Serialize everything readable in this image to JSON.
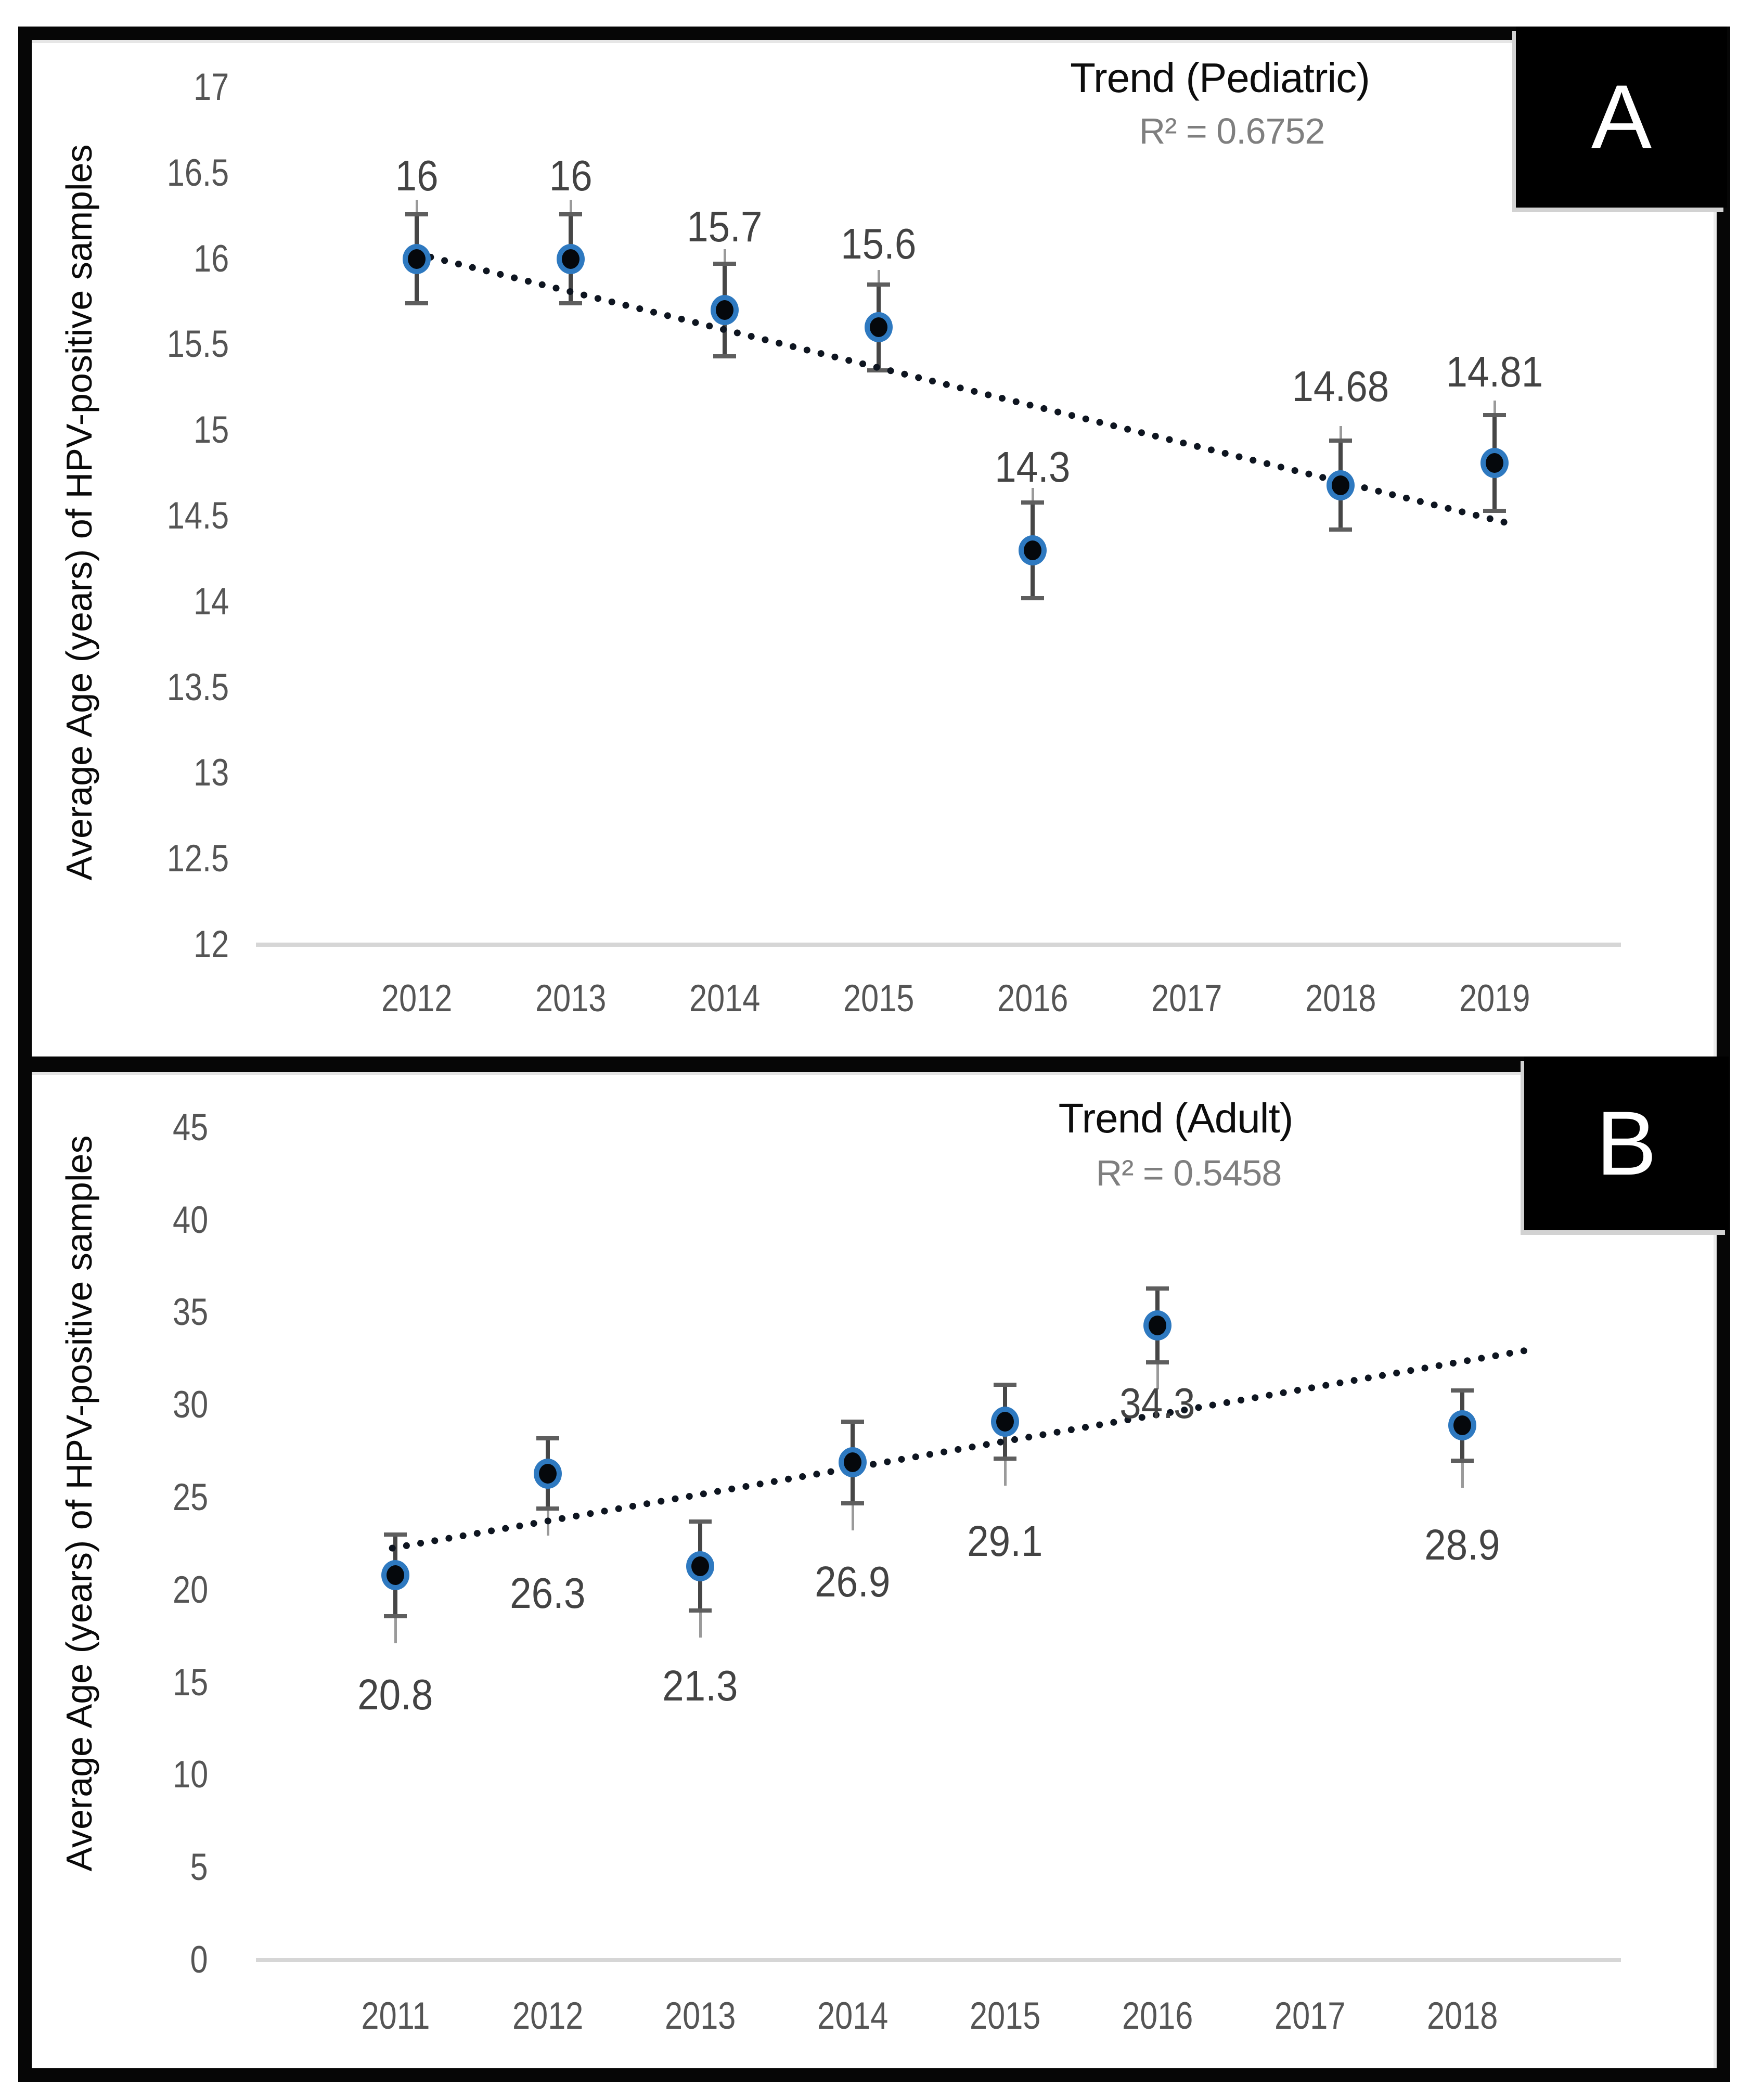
{
  "figure": {
    "panels": [
      {
        "id": "A",
        "panel_label": "A",
        "title": "Trend (Pediatric)",
        "r_squared_label": "R² = 0.6752",
        "y_axis_title": "Average Age (years) of HPV-positive samples"
      },
      {
        "id": "B",
        "panel_label": "B",
        "title": "Trend (Adult)",
        "r_squared_label": "R² = 0.5458",
        "y_axis_title": "Average Age (years) of HPV-positive samples"
      }
    ]
  },
  "chart_data": [
    {
      "type": "scatter",
      "panel": "A",
      "title": "Trend (Pediatric)",
      "r_squared": 0.6752,
      "xlabel": "",
      "ylabel": "Average Age (years) of HPV-positive samples",
      "ylim": [
        12,
        17
      ],
      "yticks": [
        12,
        12.5,
        13,
        13.5,
        14,
        14.5,
        15,
        15.5,
        16,
        16.5,
        17
      ],
      "categories": [
        2012,
        2013,
        2014,
        2015,
        2016,
        2017,
        2018,
        2019
      ],
      "grid": false,
      "legend_position": "none",
      "data_label_position": "above",
      "series": [
        {
          "name": "Pediatric",
          "points": [
            {
              "x": 2012,
              "y": 16,
              "label": "16",
              "err": 0.26
            },
            {
              "x": 2013,
              "y": 16,
              "label": "16",
              "err": 0.26
            },
            {
              "x": 2014,
              "y": 15.7,
              "label": "15.7",
              "err": 0.27
            },
            {
              "x": 2015,
              "y": 15.6,
              "label": "15.6",
              "err": 0.25
            },
            {
              "x": 2016,
              "y": 14.3,
              "label": "14.3",
              "err": 0.28
            },
            {
              "x": 2018,
              "y": 14.68,
              "label": "14.68",
              "err": 0.26
            },
            {
              "x": 2019,
              "y": 14.81,
              "label": "14.81",
              "err": 0.28
            }
          ]
        }
      ],
      "trendline": {
        "x1": 2012.0,
        "y1": 16.03,
        "x2": 2019.08,
        "y2": 14.46
      }
    },
    {
      "type": "scatter",
      "panel": "B",
      "title": "Trend (Adult)",
      "r_squared": 0.5458,
      "xlabel": "",
      "ylabel": "Average Age (years) of HPV-positive samples",
      "ylim": [
        0,
        45
      ],
      "yticks": [
        0,
        5,
        10,
        15,
        20,
        25,
        30,
        35,
        40,
        45
      ],
      "categories": [
        2011,
        2012,
        2013,
        2014,
        2015,
        2016,
        2017,
        2018
      ],
      "grid": false,
      "legend_position": "none",
      "data_label_position": "below",
      "series": [
        {
          "name": "Adult",
          "points": [
            {
              "x": 2011,
              "y": 20.8,
              "label": "20.8",
              "err": 2.2
            },
            {
              "x": 2012,
              "y": 26.3,
              "label": "26.3",
              "err": 1.9
            },
            {
              "x": 2013,
              "y": 21.3,
              "label": "21.3",
              "err": 2.4
            },
            {
              "x": 2014,
              "y": 26.9,
              "label": "26.9",
              "err": 2.2
            },
            {
              "x": 2015,
              "y": 29.1,
              "label": "29.1",
              "err": 2.0
            },
            {
              "x": 2016,
              "y": 34.3,
              "label": "34.3",
              "err": 2.0
            },
            {
              "x": 2018,
              "y": 28.9,
              "label": "28.9",
              "err": 1.9
            }
          ]
        }
      ],
      "trendline": {
        "x1": 2010.98,
        "y1": 22.27,
        "x2": 2018.42,
        "y2": 32.96
      }
    }
  ],
  "colors": {
    "background": "#ffffff",
    "frame": "#060606",
    "marker_fill": "#05080c",
    "marker_ring": "#2e79c0",
    "error_whisker": "#464646",
    "error_cap": "#5e5e5e",
    "leader_line": "#9a9a9a",
    "trend_dots": "#0e1520",
    "axis_line": "#d6d6d6",
    "tick_text": "#555555",
    "data_label_text": "#434343",
    "title_text": "#0d0d0d",
    "r_squared_text": "#7f7f7f",
    "panel_box_bg": "#000000",
    "panel_box_text": "#ffffff"
  }
}
